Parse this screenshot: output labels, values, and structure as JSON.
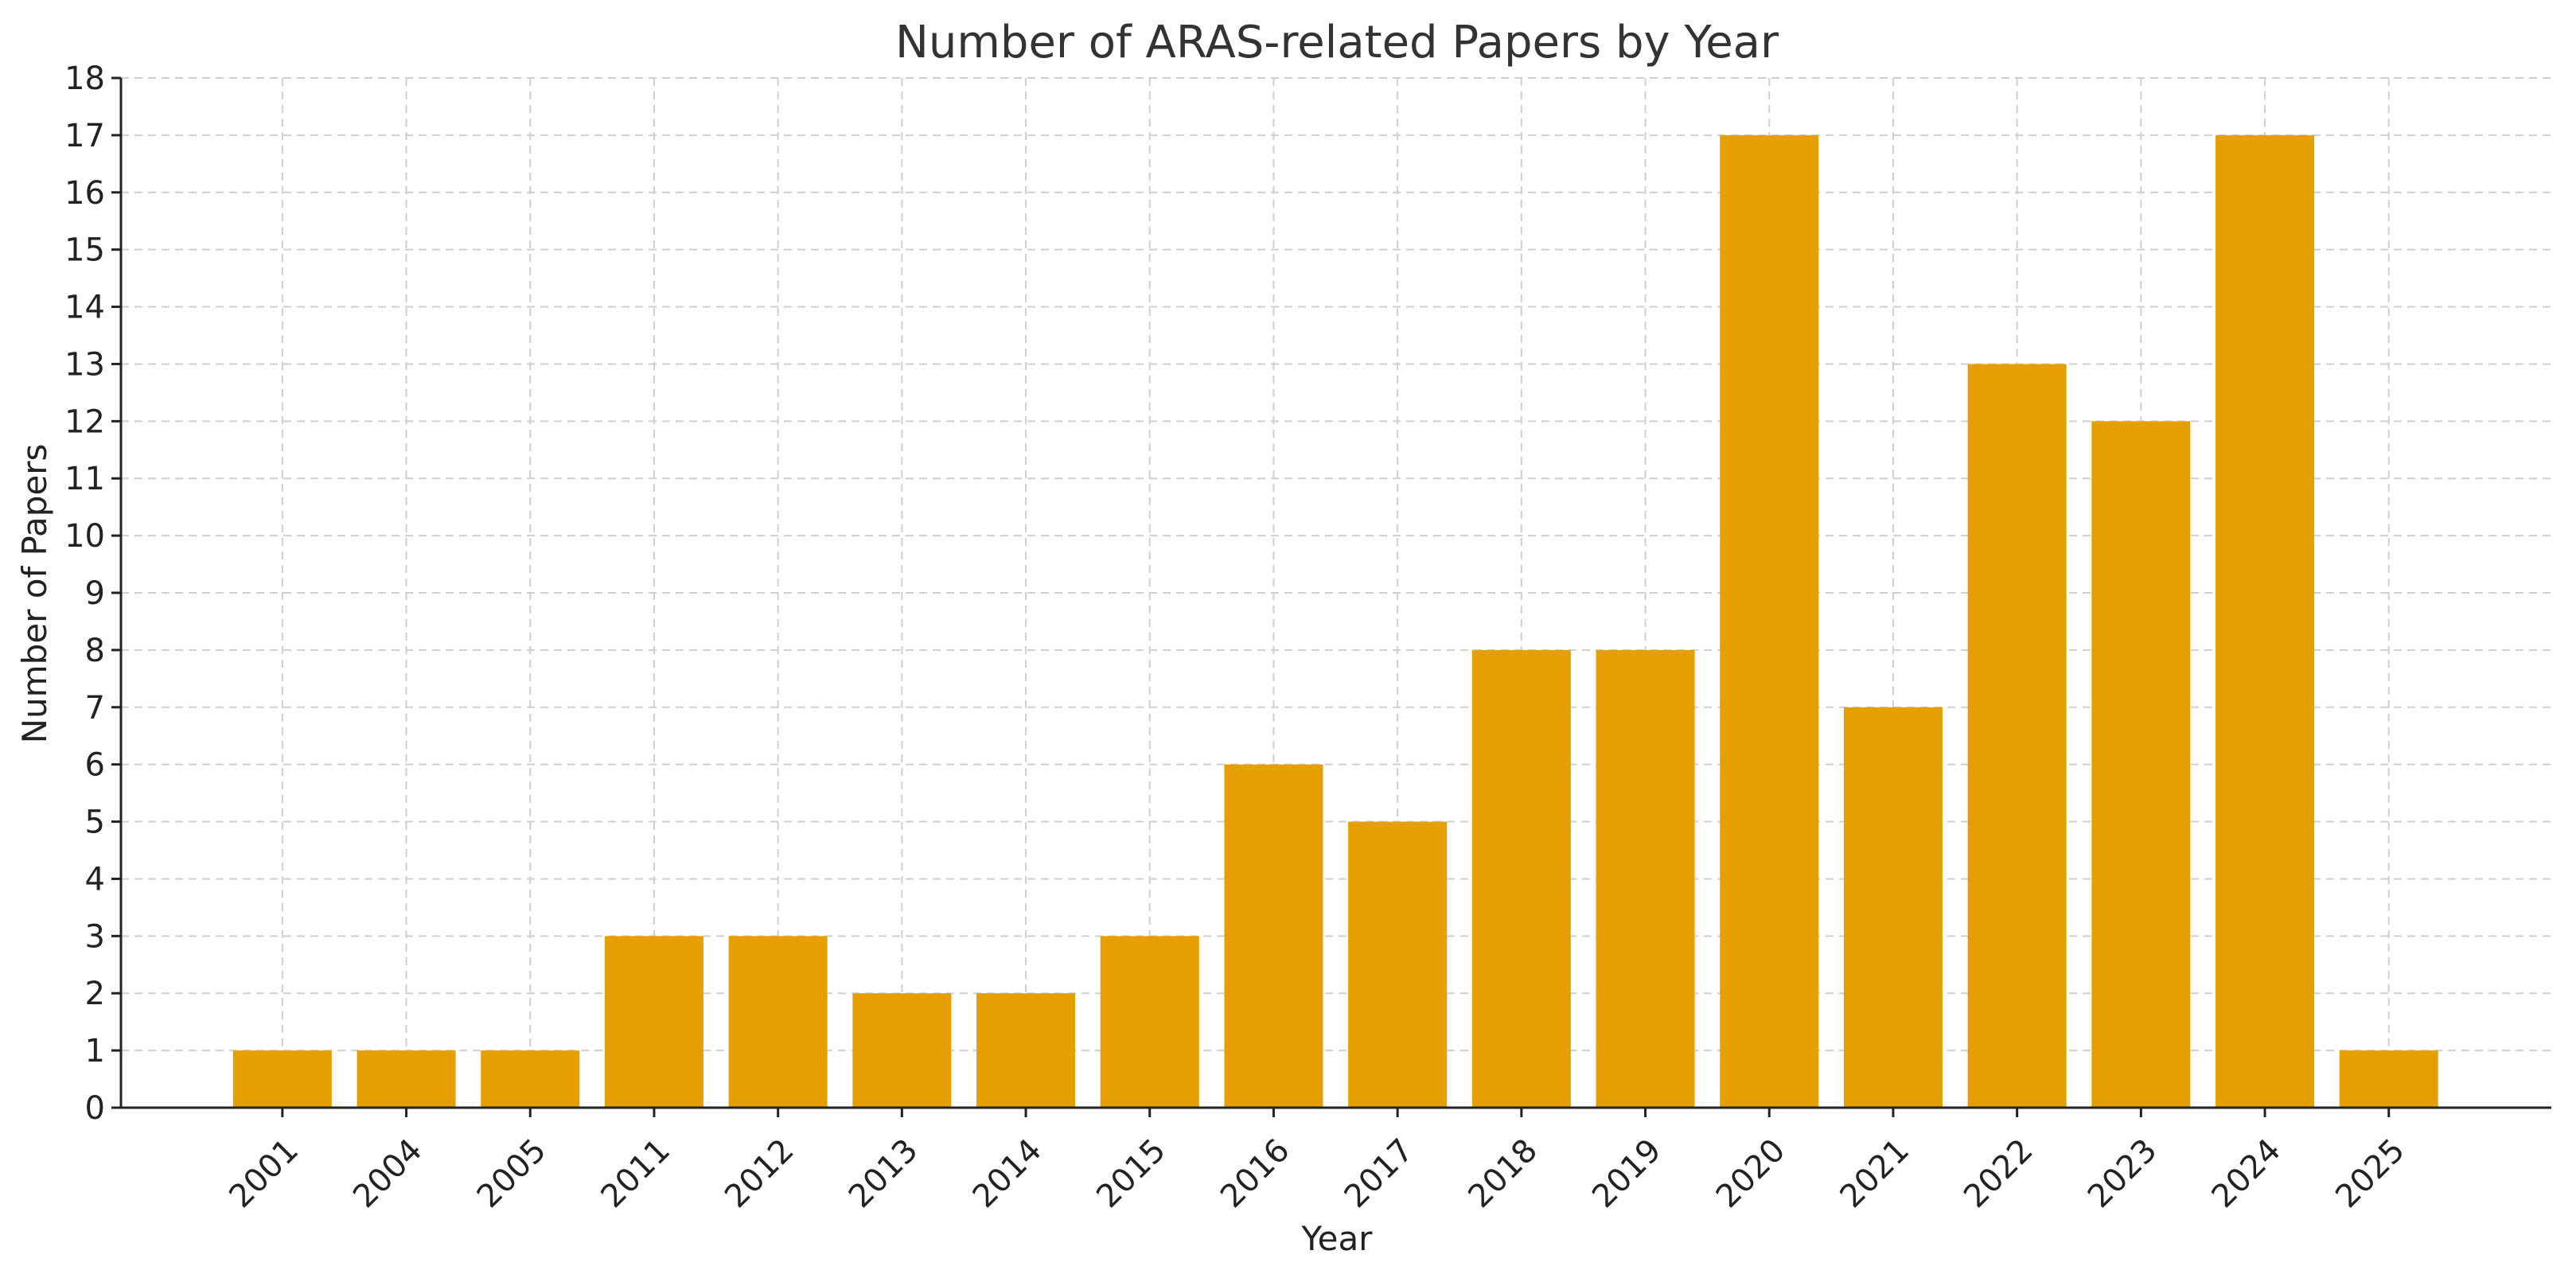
{
  "chart_data": {
    "type": "bar",
    "title": "Number of ARAS-related Papers by Year",
    "xlabel": "Year",
    "ylabel": "Number of Papers",
    "categories": [
      "2001",
      "2004",
      "2005",
      "2011",
      "2012",
      "2013",
      "2014",
      "2015",
      "2016",
      "2017",
      "2018",
      "2019",
      "2020",
      "2021",
      "2022",
      "2023",
      "2024",
      "2025"
    ],
    "values": [
      1,
      1,
      1,
      3,
      3,
      2,
      2,
      3,
      6,
      5,
      8,
      8,
      17,
      7,
      13,
      12,
      17,
      1
    ],
    "ylim": [
      0,
      18
    ],
    "yticks": [
      "0",
      "1",
      "2",
      "3",
      "4",
      "5",
      "6",
      "7",
      "8",
      "9",
      "10",
      "11",
      "12",
      "13",
      "14",
      "15",
      "16",
      "17",
      "18"
    ],
    "grid": true,
    "legend": "none",
    "bar_color": "#E69F00"
  }
}
